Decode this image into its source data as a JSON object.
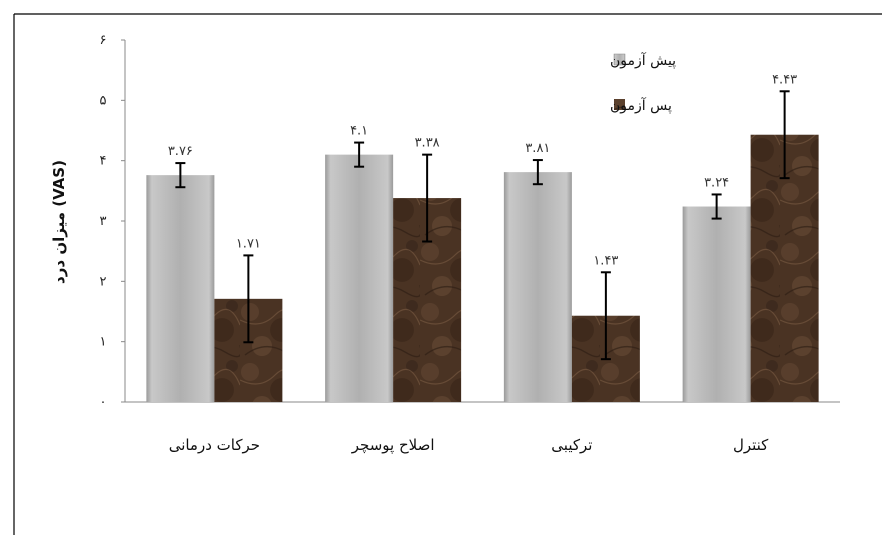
{
  "chart_data": {
    "type": "bar",
    "title": "",
    "xlabel": "",
    "ylabel": "میزان درد (VAS)",
    "ylim": [
      0,
      6
    ],
    "y_ticks": [
      {
        "value": 0,
        "label": "۰"
      },
      {
        "value": 1,
        "label": "۱"
      },
      {
        "value": 2,
        "label": "۲"
      },
      {
        "value": 3,
        "label": "۳"
      },
      {
        "value": 4,
        "label": "۴"
      },
      {
        "value": 5,
        "label": "۵"
      },
      {
        "value": 6,
        "label": "۶"
      }
    ],
    "categories": [
      "حرکات درمانی",
      "اصلاح پوسچر",
      "ترکیبی",
      "کنترل"
    ],
    "series": [
      {
        "name": "پیش آزمون",
        "color": "#a9a9a9",
        "values": [
          3.76,
          4.1,
          3.81,
          3.24
        ],
        "value_labels": [
          "۳.۷۶",
          "۴.۱",
          "۳.۸۱",
          "۳.۲۴"
        ],
        "error": [
          0.2,
          0.2,
          0.2,
          0.2
        ]
      },
      {
        "name": "پس آزمون",
        "color": "#4a3323",
        "values": [
          1.71,
          3.38,
          1.43,
          4.43
        ],
        "value_labels": [
          "۱.۷۱",
          "۳.۳۸",
          "۱.۴۳",
          "۴.۴۳"
        ],
        "error": [
          0.72,
          0.72,
          0.72,
          0.72
        ]
      }
    ],
    "legend_position": "top-right",
    "grid": false
  }
}
